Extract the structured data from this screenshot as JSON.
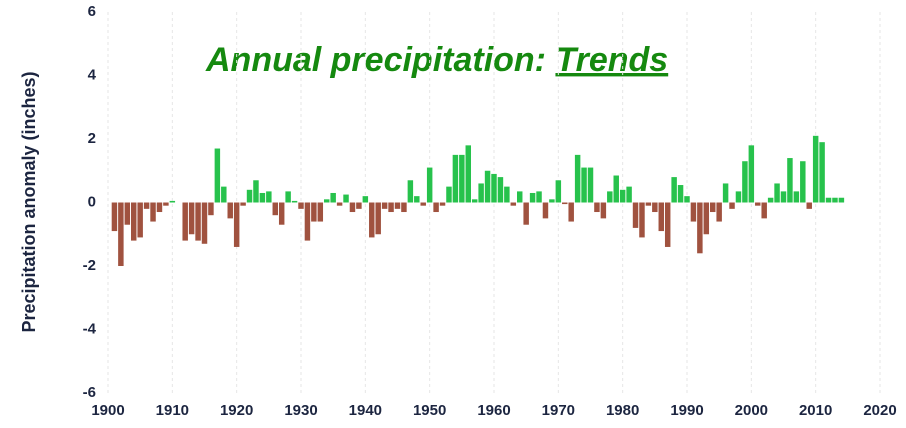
{
  "chart_data": {
    "type": "bar",
    "title": "Annual precipitation:",
    "title_emphasis": "Trends",
    "y_label": "Precipitation anomaly (inches)",
    "x": [
      1901,
      1902,
      1903,
      1904,
      1905,
      1906,
      1907,
      1908,
      1909,
      1910,
      1911,
      1912,
      1913,
      1914,
      1915,
      1916,
      1917,
      1918,
      1919,
      1920,
      1921,
      1922,
      1923,
      1924,
      1925,
      1926,
      1927,
      1928,
      1929,
      1930,
      1931,
      1932,
      1933,
      1934,
      1935,
      1936,
      1937,
      1938,
      1939,
      1940,
      1941,
      1942,
      1943,
      1944,
      1945,
      1946,
      1947,
      1948,
      1949,
      1950,
      1951,
      1952,
      1953,
      1954,
      1955,
      1956,
      1957,
      1958,
      1959,
      1960,
      1961,
      1962,
      1963,
      1964,
      1965,
      1966,
      1967,
      1968,
      1969,
      1970,
      1971,
      1972,
      1973,
      1974,
      1975,
      1976,
      1977,
      1978,
      1979,
      1980,
      1981,
      1982,
      1983,
      1984,
      1985,
      1986,
      1987,
      1988,
      1989,
      1990,
      1991,
      1992,
      1993,
      1994,
      1995,
      1996,
      1997,
      1998,
      1999,
      2000,
      2001,
      2002,
      2003,
      2004,
      2005,
      2006,
      2007,
      2008,
      2009,
      2010,
      2011,
      2012,
      2013,
      2014
    ],
    "values": [
      -0.9,
      -2.0,
      -0.7,
      -1.2,
      -1.1,
      -0.2,
      -0.6,
      -0.3,
      -0.1,
      0.05,
      0,
      -1.2,
      -1.0,
      -1.2,
      -1.3,
      -0.4,
      1.7,
      0.5,
      -0.5,
      -1.4,
      -0.1,
      0.4,
      0.7,
      0.3,
      0.35,
      -0.4,
      -0.7,
      0.35,
      0.05,
      -0.2,
      -1.2,
      -0.6,
      -0.6,
      0.1,
      0.3,
      -0.1,
      0.25,
      -0.3,
      -0.2,
      0.2,
      -1.1,
      -1.0,
      -0.2,
      -0.3,
      -0.2,
      -0.3,
      0.7,
      0.2,
      -0.1,
      1.1,
      -0.3,
      -0.1,
      0.5,
      1.5,
      1.5,
      1.8,
      0.1,
      0.6,
      1.0,
      0.9,
      0.8,
      0.5,
      -0.1,
      0.35,
      -0.7,
      0.3,
      0.35,
      -0.5,
      0.1,
      0.7,
      -0.05,
      -0.6,
      1.5,
      1.1,
      1.1,
      -0.3,
      -0.5,
      0.35,
      0.85,
      0.4,
      0.5,
      -0.8,
      -1.1,
      -0.1,
      -0.3,
      -0.9,
      -1.4,
      0.8,
      0.55,
      0.2,
      -0.6,
      -1.6,
      -1.0,
      -0.3,
      -0.6,
      0.6,
      -0.2,
      0.35,
      1.3,
      1.8,
      -0.1,
      -0.5,
      0.15,
      0.6,
      0.35,
      1.4,
      0.35,
      1.3,
      -0.2,
      2.1,
      1.9,
      0.15,
      0.15,
      0.15
    ],
    "positive_color": "#27c24c",
    "negative_color": "#a0523f",
    "xlim": [
      1900,
      2020
    ],
    "xticks": [
      1900,
      1910,
      1920,
      1930,
      1940,
      1950,
      1960,
      1970,
      1980,
      1990,
      2000,
      2010,
      2020
    ],
    "ylim": [
      -6,
      6
    ],
    "yticks": [
      -6,
      -4,
      -2,
      0,
      2,
      4,
      6
    ],
    "grid": true
  }
}
